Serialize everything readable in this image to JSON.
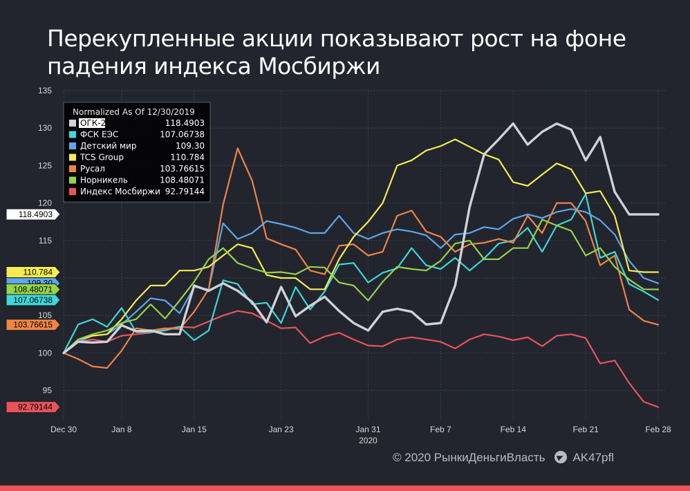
{
  "title": "Перекупленные акции показывают рост на фоне падения индекса Мосбиржи",
  "footer": {
    "copyright": "© 2020  РынкиДеньгиВласть",
    "telegram": "AK47pfl",
    "telegram_icon": "telegram-icon"
  },
  "colors": {
    "background": "#22252e",
    "grid": "#3a3e49",
    "bottom_bar": "#e8545a"
  },
  "chart_data": {
    "type": "line",
    "title": "Перекупленные акции показывают рост на фоне падения индекса Мосбиржи",
    "xlabel": "",
    "ylabel": "",
    "ylim": [
      91,
      135
    ],
    "yticks": [
      95,
      100,
      105,
      110,
      115,
      120,
      125,
      130,
      135
    ],
    "grid": true,
    "legend_position": "top-left",
    "legend_header": "Normalized As Of 12/30/2019",
    "x": [
      "2019-12-30",
      "2019-12-31",
      "2020-01-03",
      "2020-01-06",
      "2020-01-08",
      "2020-01-09",
      "2020-01-10",
      "2020-01-13",
      "2020-01-14",
      "2020-01-15",
      "2020-01-16",
      "2020-01-17",
      "2020-01-20",
      "2020-01-21",
      "2020-01-22",
      "2020-01-23",
      "2020-01-24",
      "2020-01-27",
      "2020-01-28",
      "2020-01-29",
      "2020-01-30",
      "2020-01-31",
      "2020-02-03",
      "2020-02-04",
      "2020-02-05",
      "2020-02-06",
      "2020-02-07",
      "2020-02-10",
      "2020-02-11",
      "2020-02-12",
      "2020-02-13",
      "2020-02-14",
      "2020-02-17",
      "2020-02-18",
      "2020-02-19",
      "2020-02-20",
      "2020-02-21",
      "2020-02-24",
      "2020-02-25",
      "2020-02-26",
      "2020-02-27",
      "2020-02-28"
    ],
    "x_ticks": [
      {
        "label": "Dec 30",
        "index": 0
      },
      {
        "label": "Jan 8",
        "index": 4
      },
      {
        "label": "Jan 15",
        "index": 9
      },
      {
        "label": "Jan 23",
        "index": 15
      },
      {
        "label": "Jan 31",
        "index": 21,
        "sub": "2020"
      },
      {
        "label": "Feb 7",
        "index": 26
      },
      {
        "label": "Feb 14",
        "index": 31
      },
      {
        "label": "Feb 21",
        "index": 36
      },
      {
        "label": "Feb 28",
        "index": 41
      }
    ],
    "series": [
      {
        "name": "Индекс Мосбиржи",
        "color": "#e8545a",
        "last": "92.79144",
        "width": 2.2,
        "values": [
          100,
          101.5,
          101.8,
          101.5,
          102.3,
          102.5,
          102.7,
          103.2,
          103.5,
          103.4,
          104.2,
          105,
          105.6,
          105.3,
          104.3,
          103.3,
          103.4,
          101.3,
          102.2,
          102.7,
          101.8,
          101.0,
          100.9,
          101.8,
          102.1,
          101.8,
          101.5,
          100.6,
          101.8,
          102.5,
          102.2,
          101.7,
          102.1,
          100.9,
          102.3,
          102.5,
          102.0,
          98.6,
          99.0,
          96.0,
          93.5,
          92.79
        ]
      },
      {
        "name": "ФСК ЕЭС",
        "color": "#3fd7d9",
        "last": "107.06738",
        "width": 2.2,
        "values": [
          100,
          103.8,
          104.5,
          103.5,
          106,
          102.8,
          102.8,
          103.0,
          103.5,
          101.7,
          103.0,
          109.7,
          109.2,
          106.5,
          106.7,
          104.0,
          108.8,
          105.8,
          108.2,
          111.8,
          112.0,
          109.4,
          110.7,
          111.3,
          114.0,
          111.7,
          111.2,
          112.7,
          111.0,
          112.6,
          114.6,
          115.0,
          116.7,
          113.5,
          117.0,
          117.8,
          121.2,
          112.7,
          113.5,
          109.2,
          108.2,
          107.07
        ]
      },
      {
        "name": "Детский мир",
        "color": "#5ea7ea",
        "last": "109.30",
        "width": 2.2,
        "values": [
          100,
          101.5,
          102.3,
          102.5,
          103.8,
          105.5,
          107.3,
          107.0,
          105.3,
          108.8,
          108.5,
          117.3,
          115.2,
          116.0,
          117.6,
          117.2,
          116.7,
          116.0,
          116.0,
          118.3,
          116.0,
          115.2,
          116.0,
          116.5,
          116.2,
          115.7,
          114.0,
          115.8,
          116.0,
          116.8,
          116.5,
          117.9,
          118.5,
          118.0,
          118.8,
          119.2,
          118.8,
          117.7,
          115.8,
          112.3,
          110.0,
          109.3
        ]
      },
      {
        "name": "Русал",
        "color": "#ee8546",
        "last": "103.76615",
        "width": 2.2,
        "values": [
          100,
          99.2,
          98.2,
          98.0,
          100.3,
          103.3,
          103.0,
          103.3,
          103.2,
          105.5,
          108.5,
          119.8,
          127.3,
          123.0,
          115.3,
          114.5,
          113.8,
          111.0,
          110.5,
          114.3,
          114.5,
          113.0,
          113.5,
          118.3,
          119.0,
          116.2,
          115.5,
          113.5,
          114.5,
          114.7,
          115.2,
          114.7,
          118.3,
          116.0,
          120.0,
          120.0,
          117.6,
          111.7,
          113.0,
          105.8,
          104.3,
          103.77
        ]
      },
      {
        "name": "TCS Group",
        "color": "#f6ec52",
        "last": "110.784",
        "width": 2.2,
        "values": [
          100,
          101.8,
          102.3,
          102.5,
          104.5,
          107.0,
          109.0,
          109.0,
          111.0,
          111.0,
          111.5,
          113.0,
          114.5,
          114.0,
          110.4,
          110.0,
          110.0,
          108.5,
          108.5,
          112.5,
          115.5,
          117.5,
          120.0,
          125.0,
          125.7,
          127.0,
          127.6,
          128.5,
          127.5,
          126.5,
          125.8,
          122.8,
          122.3,
          123.8,
          125.3,
          124.5,
          121.3,
          121.6,
          118.3,
          111.0,
          110.784,
          110.784
        ]
      },
      {
        "name": "Норникель",
        "color": "#96d449",
        "last": "108.48071",
        "width": 2.2,
        "values": [
          100,
          101.8,
          102.5,
          103.0,
          104.0,
          104.5,
          106.5,
          104.6,
          107.0,
          109.5,
          112.5,
          114.0,
          112.0,
          111.3,
          110.7,
          110.8,
          110.5,
          111.5,
          111.4,
          109.4,
          109.0,
          107.0,
          109.5,
          111.5,
          111.2,
          111.0,
          112.3,
          114.6,
          115.0,
          112.5,
          112.5,
          114.0,
          114.0,
          117.8,
          117.0,
          116.3,
          113.0,
          114.0,
          111.5,
          109.8,
          108.5,
          108.48
        ]
      },
      {
        "name": "ОГК-2",
        "color": "#cfd2d8",
        "last": "118.4903",
        "width": 3.4,
        "values": [
          100,
          101.5,
          101.4,
          101.5,
          103.7,
          102.9,
          103.0,
          102.5,
          102.5,
          109.0,
          108.3,
          109.3,
          108.3,
          106.8,
          104.1,
          108.8,
          104.9,
          106.3,
          107.5,
          105.6,
          104.0,
          103.0,
          105.5,
          105.9,
          105.5,
          103.8,
          104.0,
          109.0,
          119.5,
          126.5,
          128.5,
          130.6,
          127.8,
          129.5,
          130.6,
          129.8,
          125.7,
          128.8,
          121.5,
          118.4903,
          118.4903,
          118.4903
        ]
      }
    ]
  },
  "tags": [
    {
      "series": "ОГК-2",
      "label": "118.4903",
      "bg": "#ffffff",
      "fg": "#000000"
    },
    {
      "series": "TCS Group",
      "label": "110.784",
      "bg": "#f6ec52",
      "fg": "#000000"
    },
    {
      "series": "Детский мир",
      "label": "109.30",
      "bg": "#5ea7ea",
      "fg": "#000000"
    },
    {
      "series": "Норникель",
      "label": "108.48071",
      "bg": "#96d449",
      "fg": "#000000"
    },
    {
      "series": "ФСК ЕЭС",
      "label": "107.06738",
      "bg": "#3fd7d9",
      "fg": "#000000"
    },
    {
      "series": "Русал",
      "label": "103.76615",
      "bg": "#ee8546",
      "fg": "#000000"
    },
    {
      "series": "Индекс Мосбиржи",
      "label": "92.79144",
      "bg": "#e8545a",
      "fg": "#000000"
    }
  ],
  "legend_order": [
    "ОГК-2",
    "ФСК ЕЭС",
    "Детский мир",
    "TCS Group",
    "Русал",
    "Норникель",
    "Индекс Мосбиржи"
  ]
}
